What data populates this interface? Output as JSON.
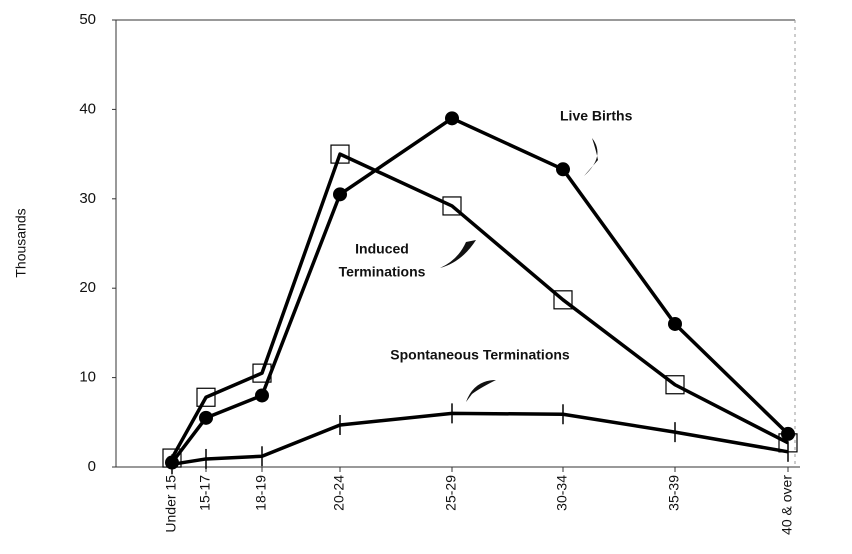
{
  "chart_data": {
    "type": "line",
    "y_label": "Thousands",
    "categories": [
      "Under 15",
      "15-17",
      "18-19",
      "20-24",
      "25-29",
      "30-34",
      "35-39",
      "40 & over"
    ],
    "series": [
      {
        "name": "Live Births",
        "color": "#000000",
        "marker": "circle",
        "values": [
          0.5,
          5.5,
          8,
          30.5,
          39,
          33.3,
          16,
          3.7
        ]
      },
      {
        "name": "Induced Terminations",
        "color": "#000000",
        "marker": "square",
        "values": [
          1,
          7.8,
          10.5,
          35,
          29.2,
          18.7,
          9.2,
          2.7
        ]
      },
      {
        "name": "Spontaneous Terminations",
        "color": "#000000",
        "marker": "tick",
        "values": [
          0.3,
          0.9,
          1.2,
          4.7,
          6,
          5.9,
          3.9,
          1.7
        ]
      }
    ],
    "annotations": [
      "Live Births",
      "Induced",
      "Terminations",
      "Spontaneous Terminations"
    ],
    "ylim": [
      0,
      50
    ],
    "yticks": [
      0,
      10,
      20,
      30,
      40,
      50
    ],
    "grid": false
  }
}
